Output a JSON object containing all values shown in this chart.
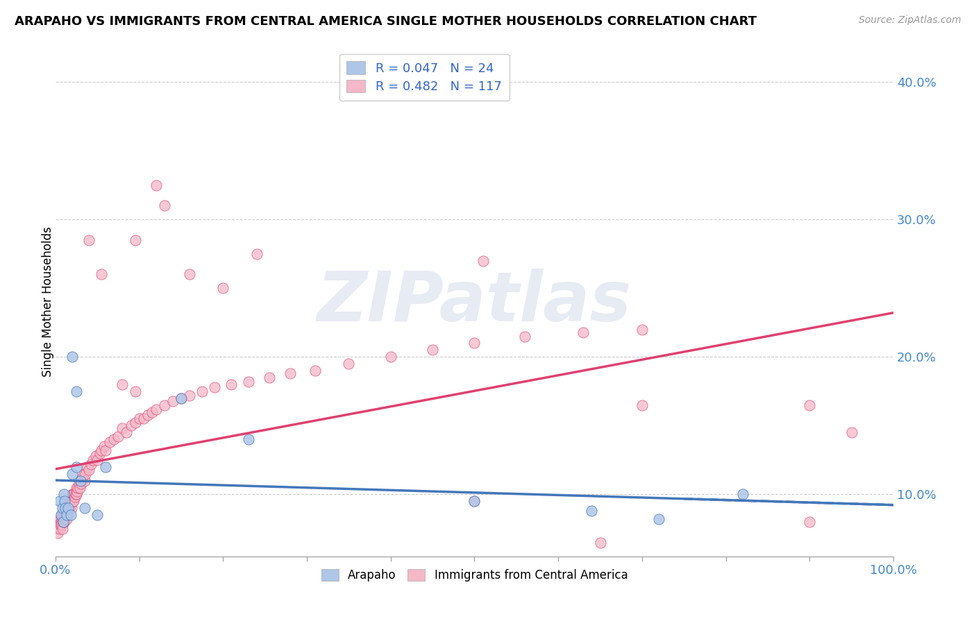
{
  "title": "ARAPAHO VS IMMIGRANTS FROM CENTRAL AMERICA SINGLE MOTHER HOUSEHOLDS CORRELATION CHART",
  "source": "Source: ZipAtlas.com",
  "ylabel": "Single Mother Households",
  "xlim": [
    0.0,
    1.0
  ],
  "ylim": [
    0.055,
    0.425
  ],
  "yticks": [
    0.1,
    0.2,
    0.3,
    0.4
  ],
  "ytick_labels": [
    "10.0%",
    "20.0%",
    "30.0%",
    "40.0%"
  ],
  "color_arapaho": "#aec6e8",
  "color_central": "#f4b8c8",
  "line_color_arapaho": "#4477bb",
  "line_color_central": "#e04070",
  "watermark_text": "ZIPatlas",
  "legend_line1": "R = 0.047   N = 24",
  "legend_line2": "R = 0.482   N = 117",
  "arapaho_x": [
    0.005,
    0.007,
    0.008,
    0.009,
    0.01,
    0.011,
    0.012,
    0.013,
    0.015,
    0.018,
    0.02,
    0.025,
    0.03,
    0.035,
    0.05,
    0.06,
    0.02,
    0.025,
    0.15,
    0.23,
    0.5,
    0.64,
    0.72,
    0.82
  ],
  "arapaho_y": [
    0.095,
    0.085,
    0.09,
    0.08,
    0.1,
    0.095,
    0.09,
    0.085,
    0.09,
    0.085,
    0.115,
    0.12,
    0.11,
    0.09,
    0.085,
    0.12,
    0.2,
    0.175,
    0.17,
    0.14,
    0.095,
    0.088,
    0.082,
    0.1
  ],
  "central_x": [
    0.002,
    0.003,
    0.004,
    0.005,
    0.005,
    0.006,
    0.006,
    0.007,
    0.007,
    0.007,
    0.008,
    0.008,
    0.008,
    0.009,
    0.009,
    0.01,
    0.01,
    0.01,
    0.01,
    0.01,
    0.011,
    0.011,
    0.012,
    0.012,
    0.012,
    0.013,
    0.013,
    0.013,
    0.014,
    0.014,
    0.015,
    0.015,
    0.015,
    0.016,
    0.016,
    0.017,
    0.017,
    0.018,
    0.018,
    0.019,
    0.02,
    0.02,
    0.021,
    0.021,
    0.022,
    0.022,
    0.023,
    0.024,
    0.025,
    0.025,
    0.026,
    0.027,
    0.028,
    0.029,
    0.03,
    0.031,
    0.032,
    0.034,
    0.035,
    0.036,
    0.038,
    0.04,
    0.042,
    0.045,
    0.048,
    0.05,
    0.053,
    0.055,
    0.058,
    0.06,
    0.065,
    0.07,
    0.075,
    0.08,
    0.085,
    0.09,
    0.095,
    0.1,
    0.105,
    0.11,
    0.115,
    0.12,
    0.13,
    0.14,
    0.15,
    0.16,
    0.175,
    0.19,
    0.21,
    0.23,
    0.255,
    0.28,
    0.31,
    0.35,
    0.4,
    0.45,
    0.5,
    0.56,
    0.63,
    0.7,
    0.2,
    0.24,
    0.16,
    0.51,
    0.5,
    0.65,
    0.9,
    0.95,
    0.9,
    0.7,
    0.12,
    0.13,
    0.095,
    0.04,
    0.055,
    0.095,
    0.08
  ],
  "central_y": [
    0.075,
    0.072,
    0.078,
    0.08,
    0.075,
    0.082,
    0.078,
    0.085,
    0.08,
    0.078,
    0.082,
    0.078,
    0.075,
    0.085,
    0.08,
    0.08,
    0.085,
    0.082,
    0.08,
    0.085,
    0.088,
    0.082,
    0.088,
    0.085,
    0.09,
    0.088,
    0.082,
    0.09,
    0.09,
    0.088,
    0.088,
    0.092,
    0.085,
    0.09,
    0.092,
    0.09,
    0.092,
    0.092,
    0.095,
    0.09,
    0.095,
    0.1,
    0.095,
    0.1,
    0.1,
    0.095,
    0.098,
    0.1,
    0.1,
    0.105,
    0.102,
    0.105,
    0.108,
    0.105,
    0.11,
    0.108,
    0.112,
    0.115,
    0.11,
    0.115,
    0.12,
    0.118,
    0.122,
    0.125,
    0.128,
    0.125,
    0.13,
    0.132,
    0.135,
    0.132,
    0.138,
    0.14,
    0.142,
    0.148,
    0.145,
    0.15,
    0.152,
    0.155,
    0.155,
    0.158,
    0.16,
    0.162,
    0.165,
    0.168,
    0.17,
    0.172,
    0.175,
    0.178,
    0.18,
    0.182,
    0.185,
    0.188,
    0.19,
    0.195,
    0.2,
    0.205,
    0.21,
    0.215,
    0.218,
    0.22,
    0.25,
    0.275,
    0.26,
    0.27,
    0.095,
    0.065,
    0.165,
    0.145,
    0.08,
    0.165,
    0.325,
    0.31,
    0.285,
    0.285,
    0.26,
    0.175,
    0.18
  ]
}
